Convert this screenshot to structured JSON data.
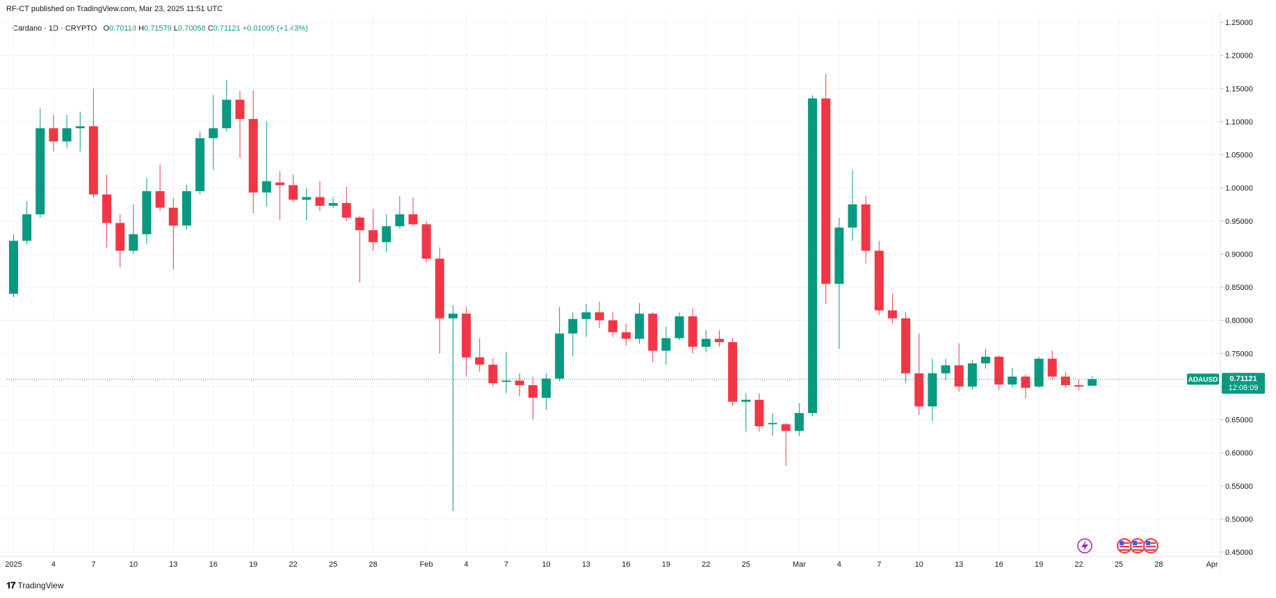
{
  "header": {
    "published_by": "RF-CT published on TradingView.com, Mar 23, 2025 11:51 UTC"
  },
  "legend": {
    "symbol": "Cardano",
    "interval": "1D",
    "exchange": "CRYPTO",
    "open_label": "O",
    "open": "0.70118",
    "high_label": "H",
    "high": "0.71579",
    "low_label": "L",
    "low": "0.70058",
    "close_label": "C",
    "close": "0.71121",
    "change": "+0.01005 (+1.43%)"
  },
  "price_tag": {
    "ticker": "ADAUSD",
    "price": "0.71121",
    "countdown": "12:08:09"
  },
  "footer": {
    "brand": "TradingView"
  },
  "icons": [
    "tradingview-logo-icon",
    "lightning-event-icon",
    "us-flag-event-icon"
  ],
  "colors": {
    "up": "#089981",
    "down": "#f23645",
    "grid": "#f0f3fa",
    "price_line": "#089981"
  },
  "chart_data": {
    "type": "candlestick",
    "symbol": "ADAUSD",
    "interval": "1D",
    "ylim": [
      0.45,
      1.25
    ],
    "y_ticks": [
      "0.45000",
      "0.50000",
      "0.55000",
      "0.60000",
      "0.65000",
      "0.70000",
      "0.75000",
      "0.80000",
      "0.85000",
      "0.90000",
      "0.95000",
      "1.00000",
      "1.05000",
      "1.10000",
      "1.15000",
      "1.20000",
      "1.25000"
    ],
    "x_ticks": [
      {
        "label": "2025",
        "day": 1
      },
      {
        "label": "4",
        "day": 4
      },
      {
        "label": "7",
        "day": 7
      },
      {
        "label": "10",
        "day": 10
      },
      {
        "label": "13",
        "day": 13
      },
      {
        "label": "16",
        "day": 16
      },
      {
        "label": "19",
        "day": 19
      },
      {
        "label": "22",
        "day": 22
      },
      {
        "label": "25",
        "day": 25
      },
      {
        "label": "28",
        "day": 28
      },
      {
        "label": "Feb",
        "day": 32
      },
      {
        "label": "4",
        "day": 35
      },
      {
        "label": "7",
        "day": 38
      },
      {
        "label": "10",
        "day": 41
      },
      {
        "label": "13",
        "day": 44
      },
      {
        "label": "16",
        "day": 47
      },
      {
        "label": "19",
        "day": 50
      },
      {
        "label": "22",
        "day": 53
      },
      {
        "label": "25",
        "day": 56
      },
      {
        "label": "Mar",
        "day": 60
      },
      {
        "label": "4",
        "day": 63
      },
      {
        "label": "7",
        "day": 66
      },
      {
        "label": "10",
        "day": 69
      },
      {
        "label": "13",
        "day": 72
      },
      {
        "label": "16",
        "day": 75
      },
      {
        "label": "19",
        "day": 78
      },
      {
        "label": "22",
        "day": 81
      },
      {
        "label": "25",
        "day": 84
      },
      {
        "label": "28",
        "day": 87
      },
      {
        "label": "Apr",
        "day": 91
      }
    ],
    "candles": [
      {
        "d": "2025-01-01",
        "o": 0.84,
        "h": 0.93,
        "l": 0.835,
        "c": 0.92
      },
      {
        "d": "2025-01-02",
        "o": 0.92,
        "h": 0.98,
        "l": 0.915,
        "c": 0.96
      },
      {
        "d": "2025-01-03",
        "o": 0.96,
        "h": 1.12,
        "l": 0.955,
        "c": 1.09
      },
      {
        "d": "2025-01-04",
        "o": 1.09,
        "h": 1.11,
        "l": 1.055,
        "c": 1.07
      },
      {
        "d": "2025-01-05",
        "o": 1.07,
        "h": 1.11,
        "l": 1.06,
        "c": 1.09
      },
      {
        "d": "2025-01-06",
        "o": 1.09,
        "h": 1.115,
        "l": 1.055,
        "c": 1.093
      },
      {
        "d": "2025-01-07",
        "o": 1.093,
        "h": 1.15,
        "l": 0.985,
        "c": 0.99
      },
      {
        "d": "2025-01-08",
        "o": 0.99,
        "h": 1.02,
        "l": 0.91,
        "c": 0.947
      },
      {
        "d": "2025-01-09",
        "o": 0.947,
        "h": 0.96,
        "l": 0.88,
        "c": 0.905
      },
      {
        "d": "2025-01-10",
        "o": 0.905,
        "h": 0.975,
        "l": 0.9,
        "c": 0.93
      },
      {
        "d": "2025-01-11",
        "o": 0.93,
        "h": 1.015,
        "l": 0.915,
        "c": 0.995
      },
      {
        "d": "2025-01-12",
        "o": 0.995,
        "h": 1.035,
        "l": 0.965,
        "c": 0.97
      },
      {
        "d": "2025-01-13",
        "o": 0.97,
        "h": 0.985,
        "l": 0.877,
        "c": 0.943
      },
      {
        "d": "2025-01-14",
        "o": 0.943,
        "h": 1.005,
        "l": 0.937,
        "c": 0.995
      },
      {
        "d": "2025-01-15",
        "o": 0.995,
        "h": 1.085,
        "l": 0.99,
        "c": 1.075
      },
      {
        "d": "2025-01-16",
        "o": 1.075,
        "h": 1.14,
        "l": 1.027,
        "c": 1.09
      },
      {
        "d": "2025-01-17",
        "o": 1.09,
        "h": 1.163,
        "l": 1.085,
        "c": 1.133
      },
      {
        "d": "2025-01-18",
        "o": 1.133,
        "h": 1.146,
        "l": 1.045,
        "c": 1.104
      },
      {
        "d": "2025-01-19",
        "o": 1.104,
        "h": 1.147,
        "l": 0.962,
        "c": 0.993
      },
      {
        "d": "2025-01-20",
        "o": 0.993,
        "h": 1.1,
        "l": 0.972,
        "c": 1.01
      },
      {
        "d": "2025-01-21",
        "o": 1.008,
        "h": 1.025,
        "l": 0.952,
        "c": 1.004
      },
      {
        "d": "2025-01-22",
        "o": 1.004,
        "h": 1.02,
        "l": 0.978,
        "c": 0.982
      },
      {
        "d": "2025-01-23",
        "o": 0.982,
        "h": 1.0,
        "l": 0.951,
        "c": 0.986
      },
      {
        "d": "2025-01-24",
        "o": 0.986,
        "h": 1.01,
        "l": 0.965,
        "c": 0.973
      },
      {
        "d": "2025-01-25",
        "o": 0.973,
        "h": 0.985,
        "l": 0.97,
        "c": 0.977
      },
      {
        "d": "2025-01-26",
        "o": 0.977,
        "h": 1.002,
        "l": 0.95,
        "c": 0.955
      },
      {
        "d": "2025-01-27",
        "o": 0.955,
        "h": 0.958,
        "l": 0.857,
        "c": 0.936
      },
      {
        "d": "2025-01-28",
        "o": 0.936,
        "h": 0.968,
        "l": 0.905,
        "c": 0.918
      },
      {
        "d": "2025-01-29",
        "o": 0.918,
        "h": 0.96,
        "l": 0.903,
        "c": 0.942
      },
      {
        "d": "2025-01-30",
        "o": 0.942,
        "h": 0.987,
        "l": 0.938,
        "c": 0.96
      },
      {
        "d": "2025-01-31",
        "o": 0.96,
        "h": 0.985,
        "l": 0.942,
        "c": 0.945
      },
      {
        "d": "2025-02-01",
        "o": 0.945,
        "h": 0.95,
        "l": 0.887,
        "c": 0.893
      },
      {
        "d": "2025-02-02",
        "o": 0.893,
        "h": 0.91,
        "l": 0.75,
        "c": 0.803
      },
      {
        "d": "2025-02-03",
        "o": 0.803,
        "h": 0.823,
        "l": 0.512,
        "c": 0.81
      },
      {
        "d": "2025-02-04",
        "o": 0.81,
        "h": 0.82,
        "l": 0.715,
        "c": 0.744
      },
      {
        "d": "2025-02-05",
        "o": 0.744,
        "h": 0.773,
        "l": 0.722,
        "c": 0.733
      },
      {
        "d": "2025-02-06",
        "o": 0.733,
        "h": 0.742,
        "l": 0.7,
        "c": 0.705
      },
      {
        "d": "2025-02-07",
        "o": 0.707,
        "h": 0.752,
        "l": 0.69,
        "c": 0.709
      },
      {
        "d": "2025-02-08",
        "o": 0.709,
        "h": 0.72,
        "l": 0.685,
        "c": 0.702
      },
      {
        "d": "2025-02-09",
        "o": 0.702,
        "h": 0.715,
        "l": 0.65,
        "c": 0.683
      },
      {
        "d": "2025-02-10",
        "o": 0.683,
        "h": 0.72,
        "l": 0.665,
        "c": 0.712
      },
      {
        "d": "2025-02-11",
        "o": 0.712,
        "h": 0.82,
        "l": 0.708,
        "c": 0.78
      },
      {
        "d": "2025-02-12",
        "o": 0.78,
        "h": 0.812,
        "l": 0.745,
        "c": 0.802
      },
      {
        "d": "2025-02-13",
        "o": 0.802,
        "h": 0.825,
        "l": 0.775,
        "c": 0.812
      },
      {
        "d": "2025-02-14",
        "o": 0.812,
        "h": 0.828,
        "l": 0.788,
        "c": 0.8
      },
      {
        "d": "2025-02-15",
        "o": 0.8,
        "h": 0.812,
        "l": 0.775,
        "c": 0.782
      },
      {
        "d": "2025-02-16",
        "o": 0.782,
        "h": 0.795,
        "l": 0.762,
        "c": 0.772
      },
      {
        "d": "2025-02-17",
        "o": 0.772,
        "h": 0.826,
        "l": 0.765,
        "c": 0.81
      },
      {
        "d": "2025-02-18",
        "o": 0.81,
        "h": 0.812,
        "l": 0.737,
        "c": 0.754
      },
      {
        "d": "2025-02-19",
        "o": 0.754,
        "h": 0.79,
        "l": 0.733,
        "c": 0.773
      },
      {
        "d": "2025-02-20",
        "o": 0.773,
        "h": 0.812,
        "l": 0.77,
        "c": 0.806
      },
      {
        "d": "2025-02-21",
        "o": 0.806,
        "h": 0.818,
        "l": 0.75,
        "c": 0.76
      },
      {
        "d": "2025-02-22",
        "o": 0.76,
        "h": 0.785,
        "l": 0.752,
        "c": 0.772
      },
      {
        "d": "2025-02-23",
        "o": 0.772,
        "h": 0.785,
        "l": 0.76,
        "c": 0.767
      },
      {
        "d": "2025-02-24",
        "o": 0.767,
        "h": 0.773,
        "l": 0.67,
        "c": 0.677
      },
      {
        "d": "2025-02-25",
        "o": 0.677,
        "h": 0.69,
        "l": 0.632,
        "c": 0.68
      },
      {
        "d": "2025-02-26",
        "o": 0.68,
        "h": 0.69,
        "l": 0.632,
        "c": 0.64
      },
      {
        "d": "2025-02-27",
        "o": 0.643,
        "h": 0.66,
        "l": 0.625,
        "c": 0.645
      },
      {
        "d": "2025-02-28",
        "o": 0.643,
        "h": 0.645,
        "l": 0.58,
        "c": 0.633
      },
      {
        "d": "2025-03-01",
        "o": 0.633,
        "h": 0.675,
        "l": 0.625,
        "c": 0.66
      },
      {
        "d": "2025-03-02",
        "o": 0.66,
        "h": 1.14,
        "l": 0.655,
        "c": 1.135
      },
      {
        "d": "2025-03-03",
        "o": 1.135,
        "h": 1.172,
        "l": 0.825,
        "c": 0.855
      },
      {
        "d": "2025-03-04",
        "o": 0.855,
        "h": 0.955,
        "l": 0.757,
        "c": 0.94
      },
      {
        "d": "2025-03-05",
        "o": 0.94,
        "h": 1.027,
        "l": 0.92,
        "c": 0.975
      },
      {
        "d": "2025-03-06",
        "o": 0.975,
        "h": 0.988,
        "l": 0.886,
        "c": 0.905
      },
      {
        "d": "2025-03-07",
        "o": 0.905,
        "h": 0.92,
        "l": 0.808,
        "c": 0.815
      },
      {
        "d": "2025-03-08",
        "o": 0.815,
        "h": 0.84,
        "l": 0.795,
        "c": 0.803
      },
      {
        "d": "2025-03-09",
        "o": 0.803,
        "h": 0.812,
        "l": 0.705,
        "c": 0.72
      },
      {
        "d": "2025-03-10",
        "o": 0.72,
        "h": 0.78,
        "l": 0.657,
        "c": 0.67
      },
      {
        "d": "2025-03-11",
        "o": 0.67,
        "h": 0.742,
        "l": 0.648,
        "c": 0.72
      },
      {
        "d": "2025-03-12",
        "o": 0.72,
        "h": 0.742,
        "l": 0.71,
        "c": 0.732
      },
      {
        "d": "2025-03-13",
        "o": 0.732,
        "h": 0.765,
        "l": 0.692,
        "c": 0.7
      },
      {
        "d": "2025-03-14",
        "o": 0.7,
        "h": 0.74,
        "l": 0.695,
        "c": 0.735
      },
      {
        "d": "2025-03-15",
        "o": 0.735,
        "h": 0.757,
        "l": 0.727,
        "c": 0.745
      },
      {
        "d": "2025-03-16",
        "o": 0.745,
        "h": 0.747,
        "l": 0.695,
        "c": 0.703
      },
      {
        "d": "2025-03-17",
        "o": 0.703,
        "h": 0.728,
        "l": 0.698,
        "c": 0.715
      },
      {
        "d": "2025-03-18",
        "o": 0.715,
        "h": 0.718,
        "l": 0.682,
        "c": 0.698
      },
      {
        "d": "2025-03-19",
        "o": 0.7,
        "h": 0.745,
        "l": 0.698,
        "c": 0.742
      },
      {
        "d": "2025-03-20",
        "o": 0.742,
        "h": 0.754,
        "l": 0.71,
        "c": 0.715
      },
      {
        "d": "2025-03-21",
        "o": 0.715,
        "h": 0.722,
        "l": 0.698,
        "c": 0.702
      },
      {
        "d": "2025-03-22",
        "o": 0.702,
        "h": 0.71,
        "l": 0.695,
        "c": 0.7
      },
      {
        "d": "2025-03-23",
        "o": 0.70118,
        "h": 0.71579,
        "l": 0.70058,
        "c": 0.71121
      }
    ]
  }
}
